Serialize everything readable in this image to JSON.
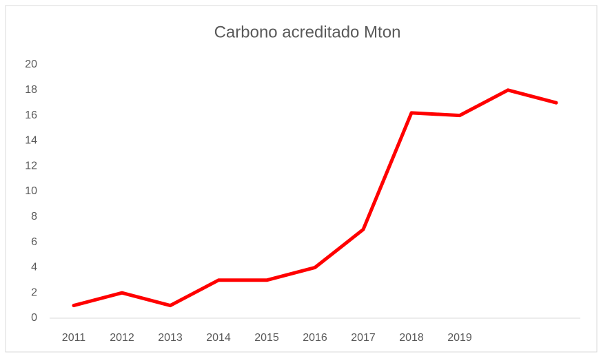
{
  "chart_data": {
    "type": "line",
    "title": "Carbono acreditado Mton",
    "categories": [
      "2011",
      "2012",
      "2013",
      "2014",
      "2015",
      "2016",
      "2017",
      "2018",
      "2019",
      null,
      null
    ],
    "series": [
      {
        "name": "Carbono acreditado Mton",
        "color": "#ff0000",
        "values": [
          1,
          2,
          1,
          3,
          3,
          4,
          7,
          16.2,
          16,
          18,
          17
        ]
      }
    ],
    "ylim": [
      0,
      20
    ],
    "yticks": [
      0,
      2,
      4,
      6,
      8,
      10,
      12,
      14,
      16,
      18,
      20
    ],
    "grid": false,
    "legend": false
  }
}
